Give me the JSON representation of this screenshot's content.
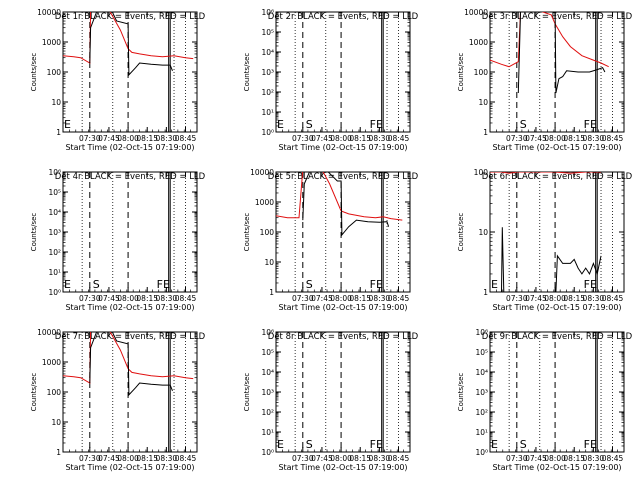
{
  "figure": {
    "xlabel": "Start Time (02-Oct-15 07:19:00)",
    "ylabel": "Counts/sec",
    "xtick_labels": [
      "07:30",
      "07:45",
      "08:00",
      "08:15",
      "08:30",
      "08:45"
    ],
    "colors": {
      "events": "#000000",
      "lld": "#e01010",
      "frame": "#000000"
    }
  },
  "chart_data": [
    {
      "type": "line",
      "title": "Det 1r BLACK = Events, RED = LLD",
      "yscale": "log",
      "ylim": [
        1,
        10000
      ],
      "ytick_labels": [
        "1",
        "10",
        "100",
        "1000",
        "10000"
      ],
      "markers": {
        "E": 7.3,
        "S": 0,
        "FE": 0
      },
      "series": [
        {
          "color": "#e01010",
          "values": [
            [
              7.15,
              350
            ],
            [
              7.29,
              320
            ],
            [
              7.38,
              300
            ],
            [
              7.5,
              200
            ],
            [
              7.51,
              12000
            ],
            [
              7.75,
              12000
            ],
            [
              7.9,
              2500
            ],
            [
              8.0,
              600
            ],
            [
              8.05,
              450
            ],
            [
              8.15,
              400
            ],
            [
              8.3,
              350
            ],
            [
              8.45,
              320
            ],
            [
              8.6,
              350
            ],
            [
              8.75,
              300
            ],
            [
              8.85,
              280
            ]
          ]
        },
        {
          "color": "#000000",
          "values": [
            [
              7.5,
              200
            ],
            [
              7.51,
              3000
            ],
            [
              7.6,
              12000
            ],
            [
              7.78,
              12000
            ],
            [
              7.85,
              5000
            ],
            [
              8.0,
              4000
            ],
            [
              8.01,
              80
            ],
            [
              8.1,
              140
            ],
            [
              8.15,
              200
            ],
            [
              8.3,
              180
            ],
            [
              8.45,
              170
            ],
            [
              8.55,
              170
            ],
            [
              8.58,
              110
            ]
          ]
        }
      ]
    },
    {
      "type": "line",
      "title": "Det 2r BLACK = Events, RED = LLD",
      "yscale": "log",
      "ylim": [
        1,
        1000000
      ],
      "ytick_labels": [
        "10⁰",
        "10¹",
        "10²",
        "10³",
        "10⁴",
        "10⁵",
        "10⁶"
      ],
      "markers": {
        "E": 7.3,
        "S": 7.5,
        "FE": 8.53
      },
      "series": []
    },
    {
      "type": "line",
      "title": "Det 3r BLACK = Events, RED = LLD",
      "yscale": "log",
      "ylim": [
        1,
        10000
      ],
      "ytick_labels": [
        "1",
        "10",
        "100",
        "1000",
        "10000"
      ],
      "markers": {
        "E": 0,
        "S": 7.5,
        "FE": 8.53
      },
      "series": [
        {
          "color": "#e01010",
          "values": [
            [
              7.15,
              250
            ],
            [
              7.3,
              180
            ],
            [
              7.4,
              150
            ],
            [
              7.52,
              220
            ],
            [
              7.55,
              12000
            ],
            [
              7.75,
              12000
            ],
            [
              7.95,
              8000
            ],
            [
              8.0,
              4000
            ],
            [
              8.1,
              1500
            ],
            [
              8.2,
              700
            ],
            [
              8.35,
              350
            ],
            [
              8.5,
              250
            ],
            [
              8.6,
              200
            ],
            [
              8.7,
              150
            ]
          ]
        },
        {
          "color": "#000000",
          "values": [
            [
              7.52,
              20
            ],
            [
              7.55,
              12000
            ],
            [
              7.75,
              12000
            ],
            [
              8.0,
              12000
            ],
            [
              8.01,
              20
            ],
            [
              8.05,
              60
            ],
            [
              8.1,
              70
            ],
            [
              8.15,
              110
            ],
            [
              8.3,
              100
            ],
            [
              8.45,
              100
            ],
            [
              8.55,
              120
            ],
            [
              8.62,
              140
            ],
            [
              8.65,
              100
            ]
          ]
        }
      ]
    },
    {
      "type": "line",
      "title": "Det 4r BLACK = Events, RED = LLD",
      "yscale": "log",
      "ylim": [
        1,
        1000000
      ],
      "ytick_labels": [
        "10⁰",
        "10¹",
        "10²",
        "10³",
        "10⁴",
        "10⁵",
        "10⁶"
      ],
      "markers": {
        "E": 7.3,
        "S": 7.5,
        "FE": 8.53
      },
      "series": []
    },
    {
      "type": "line",
      "title": "Det 5r BLACK = Events, RED = LLD",
      "yscale": "log",
      "ylim": [
        1,
        10000
      ],
      "ytick_labels": [
        "1",
        "10",
        "100",
        "1000",
        "10000"
      ],
      "markers": {
        "E": 0,
        "S": 7.5,
        "FE": 8.53
      },
      "series": [
        {
          "color": "#e01010",
          "values": [
            [
              7.15,
              350
            ],
            [
              7.3,
              300
            ],
            [
              7.45,
              300
            ],
            [
              7.5,
              12000
            ],
            [
              7.75,
              12000
            ],
            [
              7.85,
              4000
            ],
            [
              8.0,
              500
            ],
            [
              8.1,
              400
            ],
            [
              8.3,
              320
            ],
            [
              8.45,
              300
            ],
            [
              8.55,
              320
            ],
            [
              8.65,
              280
            ],
            [
              8.8,
              250
            ]
          ]
        },
        {
          "color": "#000000",
          "values": [
            [
              7.5,
              250
            ],
            [
              7.52,
              4000
            ],
            [
              7.6,
              12000
            ],
            [
              7.8,
              12000
            ],
            [
              7.95,
              5000
            ],
            [
              8.0,
              5000
            ],
            [
              8.01,
              80
            ],
            [
              8.1,
              150
            ],
            [
              8.2,
              250
            ],
            [
              8.35,
              220
            ],
            [
              8.5,
              210
            ],
            [
              8.6,
              220
            ],
            [
              8.62,
              150
            ]
          ]
        }
      ]
    },
    {
      "type": "line",
      "title": "Det 6r BLACK = Events, RED = LLD",
      "yscale": "log",
      "ylim": [
        1,
        100
      ],
      "ytick_labels": [
        "1",
        "10",
        "100"
      ],
      "markers": {
        "E": 7.3,
        "S": 0,
        "FE": 8.53
      },
      "series": [
        {
          "color": "#e01010",
          "values": [
            [
              7.15,
              100
            ],
            [
              7.3,
              100
            ],
            [
              7.4,
              95
            ],
            [
              7.5,
              100
            ],
            [
              7.55,
              100
            ],
            [
              8.0,
              100
            ],
            [
              8.2,
              95
            ],
            [
              8.4,
              100
            ],
            [
              8.6,
              100
            ]
          ]
        },
        {
          "color": "#000000",
          "values": [
            [
              7.3,
              1
            ],
            [
              7.31,
              12
            ],
            [
              7.33,
              1
            ],
            [
              8.01,
              1
            ],
            [
              8.03,
              4
            ],
            [
              8.1,
              3
            ],
            [
              8.2,
              3
            ],
            [
              8.25,
              3.5
            ],
            [
              8.3,
              2.5
            ],
            [
              8.35,
              2
            ],
            [
              8.4,
              2.5
            ],
            [
              8.45,
              2
            ],
            [
              8.5,
              3
            ],
            [
              8.55,
              2
            ],
            [
              8.6,
              4
            ]
          ]
        }
      ]
    },
    {
      "type": "line",
      "title": "Det 7r BLACK = Events, RED = LLD",
      "yscale": "log",
      "ylim": [
        1,
        10000
      ],
      "ytick_labels": [
        "1",
        "10",
        "100",
        "1000",
        "10000"
      ],
      "markers": {
        "E": 0,
        "S": 0,
        "FE": 0
      },
      "series": [
        {
          "color": "#e01010",
          "values": [
            [
              7.15,
              350
            ],
            [
              7.29,
              320
            ],
            [
              7.38,
              300
            ],
            [
              7.5,
              200
            ],
            [
              7.51,
              12000
            ],
            [
              7.75,
              12000
            ],
            [
              7.9,
              2500
            ],
            [
              8.0,
              600
            ],
            [
              8.05,
              450
            ],
            [
              8.15,
              400
            ],
            [
              8.3,
              350
            ],
            [
              8.45,
              320
            ],
            [
              8.6,
              350
            ],
            [
              8.75,
              300
            ],
            [
              8.85,
              280
            ]
          ]
        },
        {
          "color": "#000000",
          "values": [
            [
              7.5,
              200
            ],
            [
              7.51,
              3000
            ],
            [
              7.6,
              12000
            ],
            [
              7.78,
              12000
            ],
            [
              7.85,
              5000
            ],
            [
              8.0,
              4000
            ],
            [
              8.01,
              80
            ],
            [
              8.1,
              140
            ],
            [
              8.15,
              200
            ],
            [
              8.3,
              180
            ],
            [
              8.45,
              170
            ],
            [
              8.55,
              170
            ],
            [
              8.58,
              110
            ]
          ]
        }
      ]
    },
    {
      "type": "line",
      "title": "Det 8r BLACK = Events, RED = LLD",
      "yscale": "log",
      "ylim": [
        1,
        1000000
      ],
      "ytick_labels": [
        "10⁰",
        "10¹",
        "10²",
        "10³",
        "10⁴",
        "10⁵",
        "10⁶"
      ],
      "markers": {
        "E": 7.3,
        "S": 7.5,
        "FE": 8.53
      },
      "series": []
    },
    {
      "type": "line",
      "title": "Det 9r BLACK = Events, RED = LLD",
      "yscale": "log",
      "ylim": [
        1,
        1000000
      ],
      "ytick_labels": [
        "10⁰",
        "10¹",
        "10²",
        "10³",
        "10⁴",
        "10⁵",
        "10⁶"
      ],
      "markers": {
        "E": 7.3,
        "S": 7.5,
        "FE": 8.53
      },
      "series": []
    }
  ]
}
